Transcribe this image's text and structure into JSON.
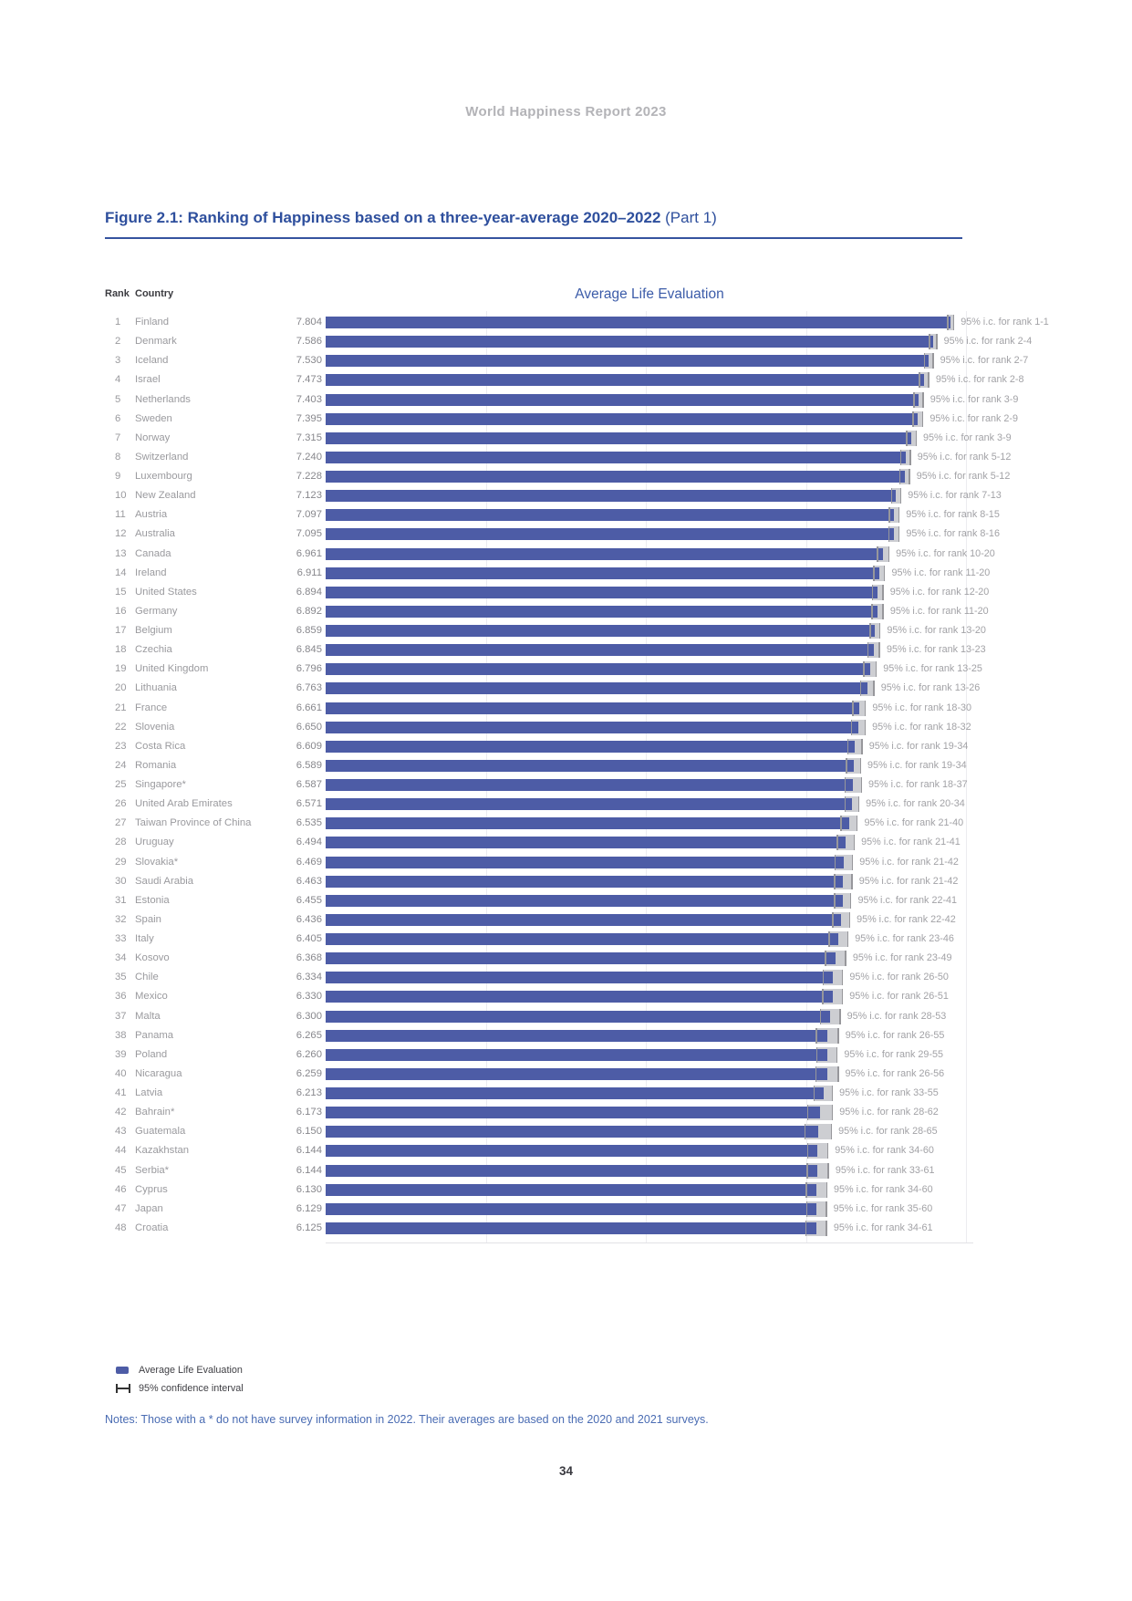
{
  "page": {
    "header": "World Happiness Report 2023",
    "notes": "Notes: Those with a * do not have survey information in 2022. Their averages are based on the 2020 and 2021 surveys.",
    "page_number": "34"
  },
  "figure": {
    "title_bold": "Figure 2.1: Ranking of Happiness based on a three-year-average 2020–2022",
    "title_regular": " (Part 1)"
  },
  "chart_data": {
    "type": "bar",
    "title": "Average Life Evaluation",
    "col_rank": "Rank",
    "col_country": "Country",
    "orientation": "horizontal",
    "xlim": [
      0,
      8.3
    ],
    "gridline_values": [
      2,
      4,
      6,
      8
    ],
    "grid": "on",
    "bar_color": "#4d5ca6",
    "ci_box_color": "#cdced2",
    "ci_cap_color": "#97979b",
    "legend_position": "bottom-left",
    "legend": [
      {
        "icon": "bar-swatch",
        "label": "Average Life Evaluation"
      },
      {
        "icon": "error-bar",
        "label": "95% confidence interval"
      }
    ],
    "rows": [
      {
        "rank": "1",
        "country": "Finland",
        "value": "7.804",
        "ci_label": "95% i.c. for rank 1-1",
        "ci_low": 1,
        "ci_high": 1
      },
      {
        "rank": "2",
        "country": "Denmark",
        "value": "7.586",
        "ci_label": "95% i.c. for rank 2-4",
        "ci_low": 2,
        "ci_high": 4
      },
      {
        "rank": "3",
        "country": "Iceland",
        "value": "7.530",
        "ci_label": "95% i.c. for rank 2-7",
        "ci_low": 2,
        "ci_high": 7
      },
      {
        "rank": "4",
        "country": "Israel",
        "value": "7.473",
        "ci_label": "95% i.c. for rank 2-8",
        "ci_low": 2,
        "ci_high": 8
      },
      {
        "rank": "5",
        "country": "Netherlands",
        "value": "7.403",
        "ci_label": "95% i.c. for rank 3-9",
        "ci_low": 3,
        "ci_high": 9
      },
      {
        "rank": "6",
        "country": "Sweden",
        "value": "7.395",
        "ci_label": "95% i.c. for rank 2-9",
        "ci_low": 2,
        "ci_high": 9
      },
      {
        "rank": "7",
        "country": "Norway",
        "value": "7.315",
        "ci_label": "95% i.c. for rank 3-9",
        "ci_low": 3,
        "ci_high": 9
      },
      {
        "rank": "8",
        "country": "Switzerland",
        "value": "7.240",
        "ci_label": "95% i.c. for rank 5-12",
        "ci_low": 5,
        "ci_high": 12
      },
      {
        "rank": "9",
        "country": "Luxembourg",
        "value": "7.228",
        "ci_label": "95% i.c. for rank 5-12",
        "ci_low": 5,
        "ci_high": 12
      },
      {
        "rank": "10",
        "country": "New Zealand",
        "value": "7.123",
        "ci_label": "95% i.c. for rank 7-13",
        "ci_low": 7,
        "ci_high": 13
      },
      {
        "rank": "11",
        "country": "Austria",
        "value": "7.097",
        "ci_label": "95% i.c. for rank 8-15",
        "ci_low": 8,
        "ci_high": 15
      },
      {
        "rank": "12",
        "country": "Australia",
        "value": "7.095",
        "ci_label": "95% i.c. for rank 8-16",
        "ci_low": 8,
        "ci_high": 16
      },
      {
        "rank": "13",
        "country": "Canada",
        "value": "6.961",
        "ci_label": "95% i.c. for rank 10-20",
        "ci_low": 10,
        "ci_high": 20
      },
      {
        "rank": "14",
        "country": "Ireland",
        "value": "6.911",
        "ci_label": "95% i.c. for rank 11-20",
        "ci_low": 11,
        "ci_high": 20
      },
      {
        "rank": "15",
        "country": "United States",
        "value": "6.894",
        "ci_label": "95% i.c. for rank 12-20",
        "ci_low": 12,
        "ci_high": 20
      },
      {
        "rank": "16",
        "country": "Germany",
        "value": "6.892",
        "ci_label": "95% i.c. for rank 11-20",
        "ci_low": 11,
        "ci_high": 20
      },
      {
        "rank": "17",
        "country": "Belgium",
        "value": "6.859",
        "ci_label": "95% i.c. for rank 13-20",
        "ci_low": 13,
        "ci_high": 20
      },
      {
        "rank": "18",
        "country": "Czechia",
        "value": "6.845",
        "ci_label": "95% i.c. for rank 13-23",
        "ci_low": 13,
        "ci_high": 23
      },
      {
        "rank": "19",
        "country": "United Kingdom",
        "value": "6.796",
        "ci_label": "95% i.c. for rank 13-25",
        "ci_low": 13,
        "ci_high": 25
      },
      {
        "rank": "20",
        "country": "Lithuania",
        "value": "6.763",
        "ci_label": "95% i.c. for rank 13-26",
        "ci_low": 13,
        "ci_high": 26
      },
      {
        "rank": "21",
        "country": "France",
        "value": "6.661",
        "ci_label": "95% i.c. for rank 18-30",
        "ci_low": 18,
        "ci_high": 30
      },
      {
        "rank": "22",
        "country": "Slovenia",
        "value": "6.650",
        "ci_label": "95% i.c. for rank 18-32",
        "ci_low": 18,
        "ci_high": 32
      },
      {
        "rank": "23",
        "country": "Costa Rica",
        "value": "6.609",
        "ci_label": "95% i.c. for rank 19-34",
        "ci_low": 19,
        "ci_high": 34
      },
      {
        "rank": "24",
        "country": "Romania",
        "value": "6.589",
        "ci_label": "95% i.c. for rank 19-34",
        "ci_low": 19,
        "ci_high": 34
      },
      {
        "rank": "25",
        "country": "Singapore*",
        "value": "6.587",
        "ci_label": "95% i.c. for rank 18-37",
        "ci_low": 18,
        "ci_high": 37
      },
      {
        "rank": "26",
        "country": "United Arab Emirates",
        "value": "6.571",
        "ci_label": "95% i.c. for rank 20-34",
        "ci_low": 20,
        "ci_high": 34
      },
      {
        "rank": "27",
        "country": "Taiwan Province of China",
        "value": "6.535",
        "ci_label": "95% i.c. for rank 21-40",
        "ci_low": 21,
        "ci_high": 40
      },
      {
        "rank": "28",
        "country": "Uruguay",
        "value": "6.494",
        "ci_label": "95% i.c. for rank 21-41",
        "ci_low": 21,
        "ci_high": 41
      },
      {
        "rank": "29",
        "country": "Slovakia*",
        "value": "6.469",
        "ci_label": "95% i.c. for rank 21-42",
        "ci_low": 21,
        "ci_high": 42
      },
      {
        "rank": "30",
        "country": "Saudi Arabia",
        "value": "6.463",
        "ci_label": "95% i.c. for rank 21-42",
        "ci_low": 21,
        "ci_high": 42
      },
      {
        "rank": "31",
        "country": "Estonia",
        "value": "6.455",
        "ci_label": "95% i.c. for rank 22-41",
        "ci_low": 22,
        "ci_high": 41
      },
      {
        "rank": "32",
        "country": "Spain",
        "value": "6.436",
        "ci_label": "95% i.c. for rank 22-42",
        "ci_low": 22,
        "ci_high": 42
      },
      {
        "rank": "33",
        "country": "Italy",
        "value": "6.405",
        "ci_label": "95% i.c. for rank 23-46",
        "ci_low": 23,
        "ci_high": 46
      },
      {
        "rank": "34",
        "country": "Kosovo",
        "value": "6.368",
        "ci_label": "95% i.c. for rank 23-49",
        "ci_low": 23,
        "ci_high": 49
      },
      {
        "rank": "35",
        "country": "Chile",
        "value": "6.334",
        "ci_label": "95% i.c. for rank 26-50",
        "ci_low": 26,
        "ci_high": 50
      },
      {
        "rank": "36",
        "country": "Mexico",
        "value": "6.330",
        "ci_label": "95% i.c. for rank 26-51",
        "ci_low": 26,
        "ci_high": 51
      },
      {
        "rank": "37",
        "country": "Malta",
        "value": "6.300",
        "ci_label": "95% i.c. for rank 28-53",
        "ci_low": 28,
        "ci_high": 53
      },
      {
        "rank": "38",
        "country": "Panama",
        "value": "6.265",
        "ci_label": "95% i.c. for rank 26-55",
        "ci_low": 26,
        "ci_high": 55
      },
      {
        "rank": "39",
        "country": "Poland",
        "value": "6.260",
        "ci_label": "95% i.c. for rank 29-55",
        "ci_low": 29,
        "ci_high": 55
      },
      {
        "rank": "40",
        "country": "Nicaragua",
        "value": "6.259",
        "ci_label": "95% i.c. for rank 26-56",
        "ci_low": 26,
        "ci_high": 56
      },
      {
        "rank": "41",
        "country": "Latvia",
        "value": "6.213",
        "ci_label": "95% i.c. for rank 33-55",
        "ci_low": 33,
        "ci_high": 55
      },
      {
        "rank": "42",
        "country": "Bahrain*",
        "value": "6.173",
        "ci_label": "95% i.c. for rank 28-62",
        "ci_low": 28,
        "ci_high": 62
      },
      {
        "rank": "43",
        "country": "Guatemala",
        "value": "6.150",
        "ci_label": "95% i.c. for rank 28-65",
        "ci_low": 28,
        "ci_high": 65
      },
      {
        "rank": "44",
        "country": "Kazakhstan",
        "value": "6.144",
        "ci_label": "95% i.c. for rank 34-60",
        "ci_low": 34,
        "ci_high": 60
      },
      {
        "rank": "45",
        "country": "Serbia*",
        "value": "6.144",
        "ci_label": "95% i.c. for rank 33-61",
        "ci_low": 33,
        "ci_high": 61
      },
      {
        "rank": "46",
        "country": "Cyprus",
        "value": "6.130",
        "ci_label": "95% i.c. for rank 34-60",
        "ci_low": 34,
        "ci_high": 60
      },
      {
        "rank": "47",
        "country": "Japan",
        "value": "6.129",
        "ci_label": "95% i.c. for rank 35-60",
        "ci_low": 35,
        "ci_high": 60
      },
      {
        "rank": "48",
        "country": "Croatia",
        "value": "6.125",
        "ci_label": "95% i.c. for rank 34-61",
        "ci_low": 34,
        "ci_high": 61
      }
    ]
  }
}
